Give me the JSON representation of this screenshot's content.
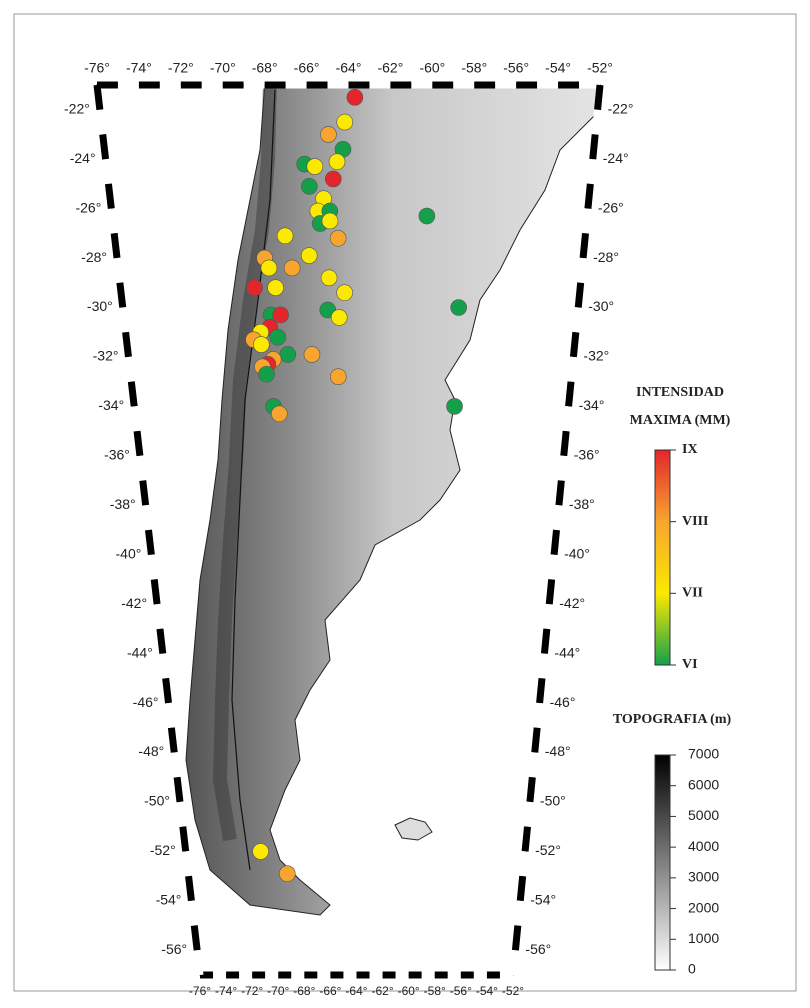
{
  "map": {
    "lonlim": [
      -76,
      -52
    ],
    "latlim": [
      -21,
      -57
    ],
    "lon_ticks": [
      {
        "value": -76,
        "label": "-76°"
      },
      {
        "value": -74,
        "label": "-74°"
      },
      {
        "value": -72,
        "label": "-72°"
      },
      {
        "value": -70,
        "label": "-70°"
      },
      {
        "value": -68,
        "label": "-68°"
      },
      {
        "value": -66,
        "label": "-66°"
      },
      {
        "value": -64,
        "label": "-64°"
      },
      {
        "value": -62,
        "label": "-62°"
      },
      {
        "value": -60,
        "label": "-60°"
      },
      {
        "value": -58,
        "label": "-58°"
      },
      {
        "value": -56,
        "label": "-56°"
      },
      {
        "value": -54,
        "label": "-54°"
      },
      {
        "value": -52,
        "label": "-52°"
      }
    ],
    "lat_ticks": [
      {
        "value": -22,
        "label": "-22°"
      },
      {
        "value": -24,
        "label": "-24°"
      },
      {
        "value": -26,
        "label": "-26°"
      },
      {
        "value": -28,
        "label": "-28°"
      },
      {
        "value": -30,
        "label": "-30°"
      },
      {
        "value": -32,
        "label": "-32°"
      },
      {
        "value": -34,
        "label": "-34°"
      },
      {
        "value": -36,
        "label": "-36°"
      },
      {
        "value": -38,
        "label": "-38°"
      },
      {
        "value": -40,
        "label": "-40°"
      },
      {
        "value": -42,
        "label": "-42°"
      },
      {
        "value": -44,
        "label": "-44°"
      },
      {
        "value": -46,
        "label": "-46°"
      },
      {
        "value": -48,
        "label": "-48°"
      },
      {
        "value": -50,
        "label": "-50°"
      },
      {
        "value": -52,
        "label": "-52°"
      },
      {
        "value": -54,
        "label": "-54°"
      },
      {
        "value": -56,
        "label": "-56°"
      }
    ],
    "events": [
      {
        "lon": -63.7,
        "lat": -21.5,
        "intensity": 9
      },
      {
        "lon": -64.2,
        "lat": -22.5,
        "intensity": 7
      },
      {
        "lon": -65.0,
        "lat": -23.0,
        "intensity": 8
      },
      {
        "lon": -64.3,
        "lat": -23.6,
        "intensity": 6
      },
      {
        "lon": -66.2,
        "lat": -24.2,
        "intensity": 6
      },
      {
        "lon": -65.7,
        "lat": -24.3,
        "intensity": 7
      },
      {
        "lon": -64.6,
        "lat": -24.1,
        "intensity": 7
      },
      {
        "lon": -64.8,
        "lat": -24.8,
        "intensity": 9
      },
      {
        "lon": -66.0,
        "lat": -25.1,
        "intensity": 6
      },
      {
        "lon": -65.3,
        "lat": -25.6,
        "intensity": 7
      },
      {
        "lon": -65.6,
        "lat": -26.1,
        "intensity": 7
      },
      {
        "lon": -65.0,
        "lat": -26.1,
        "intensity": 6
      },
      {
        "lon": -65.5,
        "lat": -26.6,
        "intensity": 6
      },
      {
        "lon": -65.0,
        "lat": -26.5,
        "intensity": 7
      },
      {
        "lon": -60.1,
        "lat": -26.3,
        "intensity": 6
      },
      {
        "lon": -67.3,
        "lat": -27.1,
        "intensity": 7
      },
      {
        "lon": -64.6,
        "lat": -27.2,
        "intensity": 8
      },
      {
        "lon": -68.4,
        "lat": -28.0,
        "intensity": 8
      },
      {
        "lon": -66.1,
        "lat": -27.9,
        "intensity": 7
      },
      {
        "lon": -68.2,
        "lat": -28.4,
        "intensity": 7
      },
      {
        "lon": -67.0,
        "lat": -28.4,
        "intensity": 8
      },
      {
        "lon": -65.1,
        "lat": -28.8,
        "intensity": 7
      },
      {
        "lon": -67.9,
        "lat": -29.2,
        "intensity": 7
      },
      {
        "lon": -69.0,
        "lat": -29.2,
        "intensity": 9
      },
      {
        "lon": -64.3,
        "lat": -29.4,
        "intensity": 7
      },
      {
        "lon": -58.3,
        "lat": -30.0,
        "intensity": 6
      },
      {
        "lon": -65.2,
        "lat": -30.1,
        "intensity": 6
      },
      {
        "lon": -68.2,
        "lat": -30.3,
        "intensity": 6
      },
      {
        "lon": -67.7,
        "lat": -30.3,
        "intensity": 9
      },
      {
        "lon": -64.6,
        "lat": -30.4,
        "intensity": 7
      },
      {
        "lon": -68.3,
        "lat": -30.8,
        "intensity": 9
      },
      {
        "lon": -68.8,
        "lat": -31.0,
        "intensity": 7
      },
      {
        "lon": -67.9,
        "lat": -31.2,
        "intensity": 6
      },
      {
        "lon": -69.2,
        "lat": -31.3,
        "intensity": 8
      },
      {
        "lon": -68.8,
        "lat": -31.5,
        "intensity": 7
      },
      {
        "lon": -67.4,
        "lat": -31.9,
        "intensity": 6
      },
      {
        "lon": -66.1,
        "lat": -31.9,
        "intensity": 8
      },
      {
        "lon": -68.2,
        "lat": -32.1,
        "intensity": 8
      },
      {
        "lon": -68.5,
        "lat": -32.3,
        "intensity": 9
      },
      {
        "lon": -68.8,
        "lat": -32.4,
        "intensity": 8
      },
      {
        "lon": -68.6,
        "lat": -32.7,
        "intensity": 6
      },
      {
        "lon": -64.7,
        "lat": -32.8,
        "intensity": 8
      },
      {
        "lon": -58.3,
        "lat": -34.0,
        "intensity": 6
      },
      {
        "lon": -68.3,
        "lat": -34.0,
        "intensity": 6
      },
      {
        "lon": -68.0,
        "lat": -34.3,
        "intensity": 8
      },
      {
        "lon": -70.7,
        "lat": -52.0,
        "intensity": 7
      },
      {
        "lon": -68.9,
        "lat": -52.9,
        "intensity": 8
      }
    ],
    "intensity_legend": {
      "title": [
        "INTENSIDAD",
        "MAXIMA (MM)"
      ],
      "ticks": [
        {
          "value": 9,
          "label": "IX"
        },
        {
          "value": 8,
          "label": "VIII"
        },
        {
          "value": 7,
          "label": "VII"
        },
        {
          "value": 6,
          "label": "VI"
        }
      ],
      "colors": [
        "#e3262b",
        "#f7a52f",
        "#fbe900",
        "#14a04b"
      ]
    },
    "topography_legend": {
      "title": "TOPOGRAFIA (m)",
      "ticks": [
        7000,
        6000,
        5000,
        4000,
        3000,
        2000,
        1000,
        0
      ]
    }
  }
}
